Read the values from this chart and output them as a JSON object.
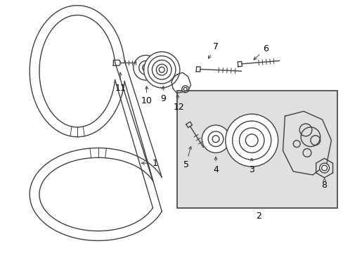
{
  "bg_color": "#ffffff",
  "inset_bg_color": "#e0e0e0",
  "line_color": "#404040",
  "label_color": "#000000",
  "font_size": 9,
  "figsize": [
    4.89,
    3.6
  ],
  "dpi": 100
}
